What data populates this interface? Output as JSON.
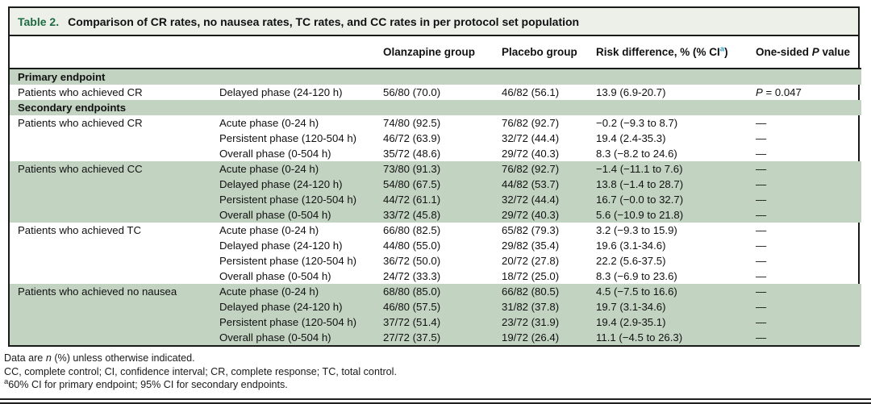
{
  "title": {
    "label": "Table 2.",
    "text": "Comparison of CR rates, no nausea rates, TC rates, and CC rates in per protocol set population"
  },
  "header": {
    "col_endpoint": "",
    "col_phase": "",
    "col_olanzapine": "Olanzapine group",
    "col_placebo": "Placebo group",
    "risk_pre": "Risk difference, % (% CI",
    "risk_sup": "a",
    "risk_post": ")",
    "p_pre": "One-sided ",
    "p_italic": "P",
    "p_post": " value"
  },
  "rows": [
    {
      "type": "section",
      "label": "Primary endpoint"
    },
    {
      "type": "data",
      "shaded": false,
      "endpoint": "Patients who achieved CR",
      "phase": "Delayed phase (24-120 h)",
      "olanzapine": "56/80 (70.0)",
      "placebo": "46/82 (56.1)",
      "risk": "13.9 (6.9-20.7)",
      "p": "P = 0.047"
    },
    {
      "type": "section",
      "label": "Secondary endpoints"
    },
    {
      "type": "data",
      "shaded": false,
      "endpoint": "Patients who achieved CR",
      "phase": "Acute phase (0-24 h)",
      "olanzapine": "74/80 (92.5)",
      "placebo": "76/82 (92.7)",
      "risk": "−0.2 (−9.3 to 8.7)",
      "p": "—"
    },
    {
      "type": "data",
      "shaded": false,
      "endpoint": "",
      "phase": "Persistent phase (120-504 h)",
      "olanzapine": "46/72 (63.9)",
      "placebo": "32/72 (44.4)",
      "risk": "19.4 (2.4-35.3)",
      "p": "—"
    },
    {
      "type": "data",
      "shaded": false,
      "endpoint": "",
      "phase": "Overall phase (0-504 h)",
      "olanzapine": "35/72 (48.6)",
      "placebo": "29/72 (40.3)",
      "risk": "8.3 (−8.2 to 24.6)",
      "p": "—"
    },
    {
      "type": "data",
      "shaded": true,
      "endpoint": "Patients who achieved CC",
      "phase": "Acute phase (0-24 h)",
      "olanzapine": "73/80 (91.3)",
      "placebo": "76/82 (92.7)",
      "risk": "−1.4 (−11.1 to 7.6)",
      "p": "—"
    },
    {
      "type": "data",
      "shaded": true,
      "endpoint": "",
      "phase": "Delayed phase (24-120 h)",
      "olanzapine": "54/80 (67.5)",
      "placebo": "44/82 (53.7)",
      "risk": "13.8 (−1.4 to 28.7)",
      "p": "—"
    },
    {
      "type": "data",
      "shaded": true,
      "endpoint": "",
      "phase": "Persistent phase (120-504 h)",
      "olanzapine": "44/72 (61.1)",
      "placebo": "32/72 (44.4)",
      "risk": "16.7 (−0.0 to 32.7)",
      "p": "—"
    },
    {
      "type": "data",
      "shaded": true,
      "endpoint": "",
      "phase": "Overall phase (0-504 h)",
      "olanzapine": "33/72 (45.8)",
      "placebo": "29/72 (40.3)",
      "risk": "5.6 (−10.9 to 21.8)",
      "p": "—"
    },
    {
      "type": "data",
      "shaded": false,
      "endpoint": "Patients who achieved TC",
      "phase": "Acute phase (0-24 h)",
      "olanzapine": "66/80 (82.5)",
      "placebo": "65/82 (79.3)",
      "risk": "3.2 (−9.3 to 15.9)",
      "p": "—"
    },
    {
      "type": "data",
      "shaded": false,
      "endpoint": "",
      "phase": "Delayed phase (24-120 h)",
      "olanzapine": "44/80 (55.0)",
      "placebo": "29/82 (35.4)",
      "risk": "19.6 (3.1-34.6)",
      "p": "—"
    },
    {
      "type": "data",
      "shaded": false,
      "endpoint": "",
      "phase": "Persistent phase (120-504 h)",
      "olanzapine": "36/72 (50.0)",
      "placebo": "20/72 (27.8)",
      "risk": "22.2 (5.6-37.5)",
      "p": "—"
    },
    {
      "type": "data",
      "shaded": false,
      "endpoint": "",
      "phase": "Overall phase (0-504 h)",
      "olanzapine": "24/72 (33.3)",
      "placebo": "18/72 (25.0)",
      "risk": "8.3 (−6.9 to 23.6)",
      "p": "—"
    },
    {
      "type": "data",
      "shaded": true,
      "endpoint": "Patients who achieved no nausea",
      "phase": "Acute phase (0-24 h)",
      "olanzapine": "68/80 (85.0)",
      "placebo": "66/82 (80.5)",
      "risk": "4.5 (−7.5 to 16.6)",
      "p": "—"
    },
    {
      "type": "data",
      "shaded": true,
      "endpoint": "",
      "phase": "Delayed phase (24-120 h)",
      "olanzapine": "46/80 (57.5)",
      "placebo": "31/82 (37.8)",
      "risk": "19.7 (3.1-34.6)",
      "p": "—"
    },
    {
      "type": "data",
      "shaded": true,
      "endpoint": "",
      "phase": "Persistent phase (120-504 h)",
      "olanzapine": "37/72 (51.4)",
      "placebo": "23/72 (31.9)",
      "risk": "19.4 (2.9-35.1)",
      "p": "—"
    },
    {
      "type": "data",
      "shaded": true,
      "endpoint": "",
      "phase": "Overall phase (0-504 h)",
      "olanzapine": "27/72 (37.5)",
      "placebo": "19/72 (26.4)",
      "risk": "11.1 (−4.5 to 26.3)",
      "p": "—"
    }
  ],
  "footnotes": [
    [
      {
        "t": "Data are "
      },
      {
        "i": "n"
      },
      {
        "t": " (%) unless otherwise indicated."
      }
    ],
    [
      {
        "t": "CC, complete control; CI, confidence interval; CR, complete response; TC, total control."
      }
    ],
    [
      {
        "s": "a"
      },
      {
        "t": "60% CI for primary endpoint; 95% CI for secondary endpoints."
      }
    ]
  ],
  "colors": {
    "band_green": "#c2d3c2",
    "title_band_bg": "#edf0e9",
    "table_label_green": "#1e6b43",
    "footnote_marker_teal": "#2e9bc3",
    "border_black": "#1a1a1a"
  }
}
